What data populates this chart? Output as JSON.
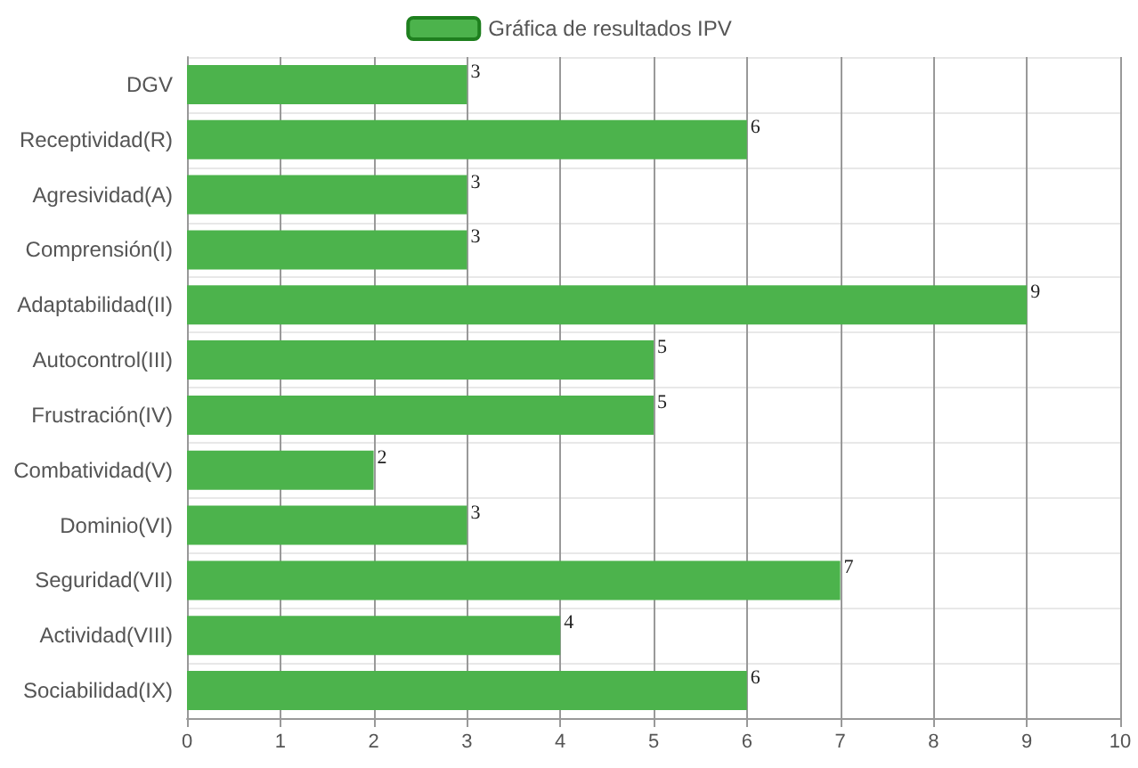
{
  "chart_data": {
    "type": "bar",
    "orientation": "horizontal",
    "categories": [
      "DGV",
      "Receptividad(R)",
      "Agresividad(A)",
      "Comprensión(I)",
      "Adaptabilidad(II)",
      "Autocontrol(III)",
      "Frustración(IV)",
      "Combatividad(V)",
      "Dominio(VI)",
      "Seguridad(VII)",
      "Actividad(VIII)",
      "Sociabilidad(IX)"
    ],
    "series": [
      {
        "name": "Gráfica de resultados IPV",
        "color": "#4cb34c",
        "values": [
          3,
          6,
          3,
          3,
          9,
          5,
          5,
          2,
          3,
          7,
          4,
          6
        ]
      }
    ],
    "xlim": [
      0,
      10
    ],
    "xticks": [
      0,
      1,
      2,
      3,
      4,
      5,
      6,
      7,
      8,
      9,
      10
    ],
    "grid": true,
    "legend": "top",
    "data_labels": true
  }
}
